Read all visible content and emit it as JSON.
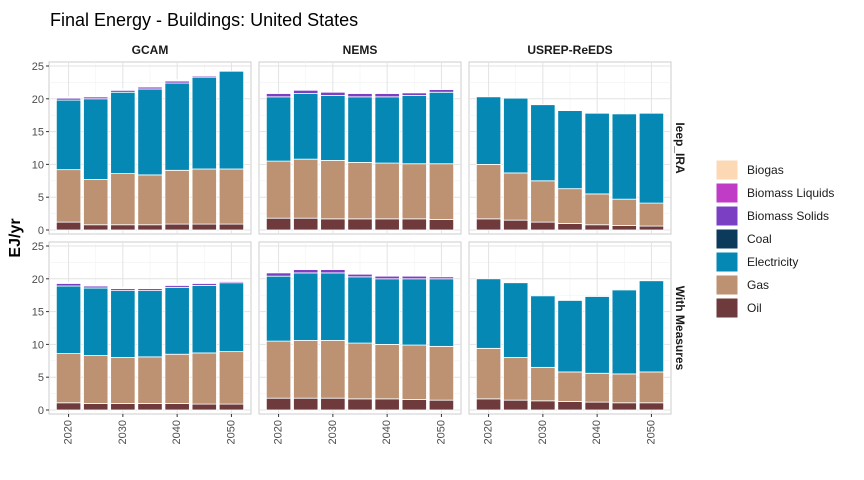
{
  "chart_data": {
    "type": "bar",
    "stacked": true,
    "title": "Final Energy - Buildings: United States",
    "ylabel": "EJ/yr",
    "xlabel": "",
    "ylim": [
      0,
      25
    ],
    "yticks": [
      0,
      5,
      10,
      15,
      20,
      25
    ],
    "xticks": [
      2020,
      2030,
      2040,
      2050
    ],
    "years": [
      2020,
      2025,
      2030,
      2035,
      2040,
      2045,
      2050
    ],
    "grid": true,
    "legend_position": "right",
    "models": [
      "GCAM",
      "NEMS",
      "USREP-ReEDS"
    ],
    "scenarios": [
      "Ieep_IRA",
      "With Measures"
    ],
    "series": [
      {
        "name": "Biogas",
        "color": "#fdd8b5"
      },
      {
        "name": "Biomass Liquids",
        "color": "#c13cc6"
      },
      {
        "name": "Biomass Solids",
        "color": "#7b3fc4"
      },
      {
        "name": "Coal",
        "color": "#0b3a5a"
      },
      {
        "name": "Electricity",
        "color": "#0589b4"
      },
      {
        "name": "Gas",
        "color": "#bd9272"
      },
      {
        "name": "Oil",
        "color": "#6e3a3b"
      }
    ],
    "panels": [
      {
        "model": "GCAM",
        "scenario": "Ieep_IRA",
        "values": {
          "Oil": [
            1.2,
            0.8,
            0.8,
            0.8,
            0.9,
            0.9,
            0.9
          ],
          "Gas": [
            8.0,
            6.9,
            7.8,
            7.6,
            8.2,
            8.4,
            8.4
          ],
          "Electricity": [
            10.6,
            12.3,
            12.4,
            13.1,
            13.3,
            14.0,
            14.9
          ],
          "Biomass Solids": [
            0.3,
            0.3,
            0.3,
            0.3,
            0.3,
            0.2,
            0.0
          ],
          "Biomass Liquids": [
            0.1,
            0.1,
            0.1,
            0.1,
            0.1,
            0.1,
            0.0
          ],
          "Biogas": [
            0.1,
            0.1,
            0.1,
            0.1,
            0.1,
            0.1,
            0.0
          ],
          "Coal": [
            0,
            0,
            0,
            0,
            0,
            0,
            0
          ]
        }
      },
      {
        "model": "NEMS",
        "scenario": "Ieep_IRA",
        "values": {
          "Oil": [
            1.8,
            1.8,
            1.7,
            1.7,
            1.7,
            1.7,
            1.6
          ],
          "Gas": [
            8.7,
            9.0,
            8.9,
            8.6,
            8.5,
            8.4,
            8.5
          ],
          "Electricity": [
            9.8,
            10.0,
            9.9,
            10.0,
            10.1,
            10.4,
            10.9
          ],
          "Biomass Solids": [
            0.5,
            0.5,
            0.5,
            0.5,
            0.5,
            0.4,
            0.4
          ],
          "Biomass Liquids": [
            0.0,
            0.0,
            0.0,
            0.0,
            0.0,
            0.0,
            0.0
          ],
          "Biogas": [
            0,
            0,
            0,
            0,
            0,
            0,
            0
          ],
          "Coal": [
            0,
            0,
            0,
            0,
            0,
            0,
            0
          ]
        }
      },
      {
        "model": "USREP-ReEDS",
        "scenario": "Ieep_IRA",
        "values": {
          "Oil": [
            1.7,
            1.5,
            1.2,
            1.0,
            0.8,
            0.7,
            0.6
          ],
          "Gas": [
            8.3,
            7.2,
            6.3,
            5.3,
            4.7,
            4.0,
            3.5
          ],
          "Electricity": [
            10.3,
            11.4,
            11.6,
            11.9,
            12.3,
            13.0,
            13.7
          ],
          "Biomass Solids": [
            0,
            0,
            0,
            0,
            0,
            0,
            0
          ],
          "Biomass Liquids": [
            0,
            0,
            0,
            0,
            0,
            0,
            0
          ],
          "Biogas": [
            0,
            0,
            0,
            0,
            0,
            0,
            0
          ],
          "Coal": [
            0,
            0,
            0,
            0,
            0,
            0,
            0
          ]
        }
      },
      {
        "model": "GCAM",
        "scenario": "With Measures",
        "values": {
          "Oil": [
            1.1,
            1.0,
            1.0,
            1.0,
            1.0,
            0.9,
            0.9
          ],
          "Gas": [
            7.5,
            7.3,
            7.0,
            7.1,
            7.5,
            7.8,
            8.0
          ],
          "Electricity": [
            10.3,
            10.3,
            10.2,
            10.1,
            10.2,
            10.3,
            10.5
          ],
          "Biomass Solids": [
            0.4,
            0.3,
            0.3,
            0.3,
            0.3,
            0.3,
            0.2
          ],
          "Biomass Liquids": [
            0.1,
            0.1,
            0.1,
            0.1,
            0.1,
            0.1,
            0.1
          ],
          "Biogas": [
            0.1,
            0.1,
            0.1,
            0.1,
            0.1,
            0.1,
            0.1
          ],
          "Coal": [
            0,
            0,
            0,
            0,
            0,
            0,
            0
          ]
        }
      },
      {
        "model": "NEMS",
        "scenario": "With Measures",
        "values": {
          "Oil": [
            1.8,
            1.8,
            1.8,
            1.7,
            1.7,
            1.6,
            1.5
          ],
          "Gas": [
            8.7,
            8.8,
            8.8,
            8.5,
            8.3,
            8.3,
            8.2
          ],
          "Electricity": [
            9.9,
            10.3,
            10.3,
            10.1,
            10.0,
            10.1,
            10.3
          ],
          "Biomass Solids": [
            0.5,
            0.5,
            0.5,
            0.4,
            0.4,
            0.4,
            0.3
          ],
          "Biomass Liquids": [
            0.0,
            0.0,
            0.0,
            0.0,
            0.0,
            0.0,
            0.0
          ],
          "Biogas": [
            0.0,
            0.0,
            0.0,
            0.0,
            0.0,
            0.0,
            0.0
          ],
          "Coal": [
            0,
            0,
            0,
            0,
            0,
            0,
            0
          ]
        }
      },
      {
        "model": "USREP-ReEDS",
        "scenario": "With Measures",
        "values": {
          "Oil": [
            1.7,
            1.5,
            1.4,
            1.3,
            1.2,
            1.1,
            1.1
          ],
          "Gas": [
            7.7,
            6.5,
            5.1,
            4.5,
            4.4,
            4.4,
            4.7
          ],
          "Electricity": [
            10.6,
            11.4,
            10.9,
            10.9,
            11.7,
            12.8,
            13.9
          ],
          "Biomass Solids": [
            0,
            0,
            0,
            0,
            0,
            0,
            0
          ],
          "Biomass Liquids": [
            0,
            0,
            0,
            0,
            0,
            0,
            0
          ],
          "Biogas": [
            0,
            0,
            0,
            0,
            0,
            0,
            0
          ],
          "Coal": [
            0,
            0,
            0,
            0,
            0,
            0,
            0
          ]
        }
      }
    ]
  }
}
